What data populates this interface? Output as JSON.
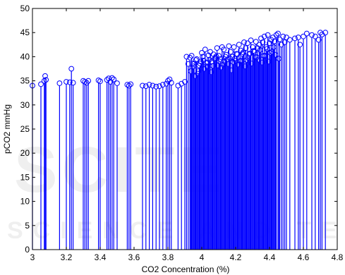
{
  "chart_data": {
    "type": "stem",
    "xlabel": "CO2 Concentration (%)",
    "ylabel": "pCO2 mmHg",
    "xlim": [
      3,
      4.8
    ],
    "ylim": [
      0,
      50
    ],
    "xticks": [
      3,
      3.2,
      3.4,
      3.6,
      3.8,
      4,
      4.2,
      4.4,
      4.6,
      4.8
    ],
    "yticks": [
      0,
      5,
      10,
      15,
      20,
      25,
      30,
      35,
      40,
      45,
      50
    ],
    "xtick_labels": [
      "3",
      "3.2",
      "3.4",
      "3.6",
      "3.8",
      "4",
      "4.2",
      "4.4",
      "4.6",
      "4.8"
    ],
    "ytick_labels": [
      "0",
      "5",
      "10",
      "15",
      "20",
      "25",
      "30",
      "35",
      "40",
      "45",
      "50"
    ],
    "grid": false,
    "color": "#0000ff",
    "marker": "circle",
    "series": [
      {
        "x": [
          3.0,
          3.05,
          3.07,
          3.075,
          3.08,
          3.16,
          3.2,
          3.22,
          3.23,
          3.24,
          3.3,
          3.31,
          3.32,
          3.33,
          3.39,
          3.4,
          3.44,
          3.45,
          3.46,
          3.47,
          3.48,
          3.5,
          3.56,
          3.57,
          3.58,
          3.65,
          3.67,
          3.69,
          3.71,
          3.73,
          3.75,
          3.77,
          3.79,
          3.8,
          3.81,
          3.82,
          3.86,
          3.88,
          3.9,
          3.91,
          3.92,
          3.93,
          3.94,
          3.95,
          3.96,
          3.97,
          3.98,
          3.99,
          4.0,
          4.01,
          4.02,
          4.03,
          4.04,
          4.05,
          4.06,
          4.07,
          4.08,
          4.09,
          4.1,
          4.11,
          4.12,
          4.13,
          4.14,
          4.15,
          4.16,
          4.17,
          4.18,
          4.19,
          4.2,
          4.21,
          4.22,
          4.23,
          4.24,
          4.25,
          4.26,
          4.27,
          4.28,
          4.29,
          4.3,
          4.31,
          4.32,
          4.33,
          4.34,
          4.35,
          4.36,
          4.37,
          4.38,
          4.39,
          4.4,
          4.41,
          4.42,
          4.43,
          4.44,
          4.45,
          4.46,
          4.47,
          4.48,
          4.49,
          4.5,
          4.52,
          4.55,
          4.57,
          4.58,
          4.6,
          4.62,
          4.65,
          4.67,
          4.69,
          4.7,
          4.71,
          4.73,
          3.935,
          3.955,
          3.975,
          3.995,
          4.015,
          4.035,
          4.055,
          4.075,
          4.095,
          4.115,
          4.135,
          4.155,
          4.175,
          4.195,
          4.215,
          4.235,
          4.255,
          4.275,
          4.295,
          4.315,
          4.335,
          4.355,
          4.375,
          4.395,
          4.415,
          4.435,
          4.455,
          3.945,
          3.965,
          3.985,
          4.005,
          4.025,
          4.045,
          4.065,
          4.085,
          4.105,
          4.125,
          4.145,
          4.165,
          4.185,
          4.205,
          4.225,
          4.245,
          4.265,
          4.285,
          4.305,
          4.325,
          4.345,
          4.365,
          4.385,
          4.405,
          4.425
        ],
        "y": [
          34.0,
          34.3,
          35.0,
          36.0,
          35.2,
          34.5,
          34.8,
          34.7,
          37.5,
          34.6,
          35.0,
          34.8,
          34.6,
          35.0,
          35.1,
          34.9,
          35.2,
          35.5,
          34.8,
          35.6,
          35.3,
          34.5,
          34.2,
          34.0,
          34.3,
          34.0,
          33.9,
          34.2,
          34.0,
          33.8,
          33.9,
          34.2,
          34.4,
          35.0,
          35.3,
          34.6,
          34.0,
          34.4,
          34.8,
          40.0,
          38.5,
          39.8,
          40.2,
          38.0,
          36.0,
          39.5,
          37.0,
          38.6,
          40.8,
          39.2,
          41.5,
          38.0,
          40.3,
          41.0,
          39.0,
          40.5,
          39.8,
          41.8,
          40.2,
          39.5,
          42.0,
          41.5,
          40.0,
          39.4,
          42.2,
          41.0,
          40.0,
          42.0,
          39.2,
          40.5,
          42.5,
          41.3,
          40.6,
          43.0,
          41.8,
          42.8,
          40.5,
          43.4,
          42.0,
          41.0,
          43.1,
          41.8,
          42.5,
          43.8,
          43.0,
          44.2,
          42.0,
          44.5,
          42.8,
          43.5,
          44.0,
          43.2,
          44.5,
          44.8,
          43.6,
          42.5,
          44.2,
          43.0,
          44.0,
          43.5,
          43.8,
          44.0,
          42.5,
          44.2,
          44.8,
          44.5,
          44.2,
          43.5,
          45.0,
          44.6,
          45.0,
          37.0,
          38.5,
          36.5,
          39.0,
          37.5,
          38.8,
          36.8,
          39.5,
          38.2,
          37.8,
          39.0,
          38.5,
          37.2,
          39.6,
          38.4,
          39.2,
          38.0,
          39.8,
          38.6,
          40.0,
          39.4,
          38.8,
          40.2,
          39.0,
          41.0,
          40.4,
          39.6,
          38.6,
          39.3,
          38.2,
          40.0,
          38.7,
          39.4,
          38.1,
          40.1,
          39.0,
          38.4,
          40.4,
          39.7,
          38.9,
          40.6,
          39.1,
          40.9,
          39.3,
          40.7,
          41.2,
          39.9,
          41.4,
          40.2,
          41.6,
          40.8,
          42.0
        ]
      }
    ]
  }
}
